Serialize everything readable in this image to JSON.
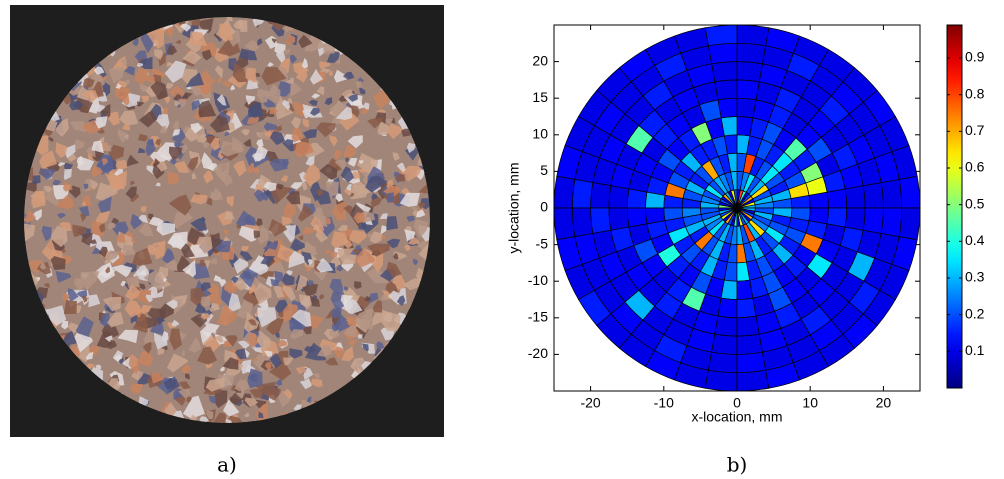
{
  "panels": [
    {
      "caption": "a)"
    }
  ],
  "chart_data": {
    "type": "polar-heatmap",
    "caption": "b)",
    "xlabel": "x-location, mm",
    "ylabel": "y-location, mm",
    "xlim": [
      -25,
      25
    ],
    "ylim": [
      -25,
      25
    ],
    "xticks": [
      -20,
      -10,
      0,
      10,
      20
    ],
    "yticks": [
      -20,
      -15,
      -10,
      -5,
      0,
      5,
      10,
      15,
      20
    ],
    "colormap": "jet",
    "clim": [
      0,
      0.99
    ],
    "cticks": [
      0.1,
      0.2,
      0.3,
      0.4,
      0.5,
      0.6,
      0.7,
      0.8,
      0.9
    ],
    "r_edges": [
      0,
      2.5,
      5,
      7.5,
      10,
      12.5,
      15,
      17.5,
      20,
      22.5,
      25
    ],
    "theta_edges": [
      0,
      10,
      20,
      30,
      40,
      50,
      60,
      70,
      80,
      90,
      100,
      110,
      120,
      130,
      140,
      150,
      160,
      170,
      180,
      190,
      200,
      210,
      220,
      230,
      240,
      250,
      260,
      270,
      280,
      290,
      300,
      310,
      320,
      330,
      340,
      350,
      360
    ],
    "values": [
      [
        0.3,
        0.6,
        0.1,
        0.7,
        0.2,
        0.1,
        0.4,
        0.8,
        0.1,
        0.2,
        0.6,
        0.1,
        0.3,
        0.7,
        0.1,
        0.2,
        0.1,
        0.5,
        0.1,
        0.3,
        0.2,
        0.6,
        0.1,
        0.7,
        0.2,
        0.1,
        0.4,
        0.1,
        0.6,
        0.2,
        0.3,
        0.1,
        0.7,
        0.2,
        0.1,
        0.3
      ],
      [
        0.25,
        0.3,
        0.2,
        0.65,
        0.3,
        0.2,
        0.35,
        0.25,
        0.2,
        0.3,
        0.2,
        0.25,
        0.3,
        0.2,
        0.35,
        0.2,
        0.25,
        0.3,
        0.2,
        0.2,
        0.3,
        0.25,
        0.35,
        0.2,
        0.3,
        0.2,
        0.25,
        0.3,
        0.2,
        0.8,
        0.3,
        0.65,
        0.25,
        0.2,
        0.3,
        0.2
      ],
      [
        0.2,
        0.3,
        0.15,
        0.2,
        0.35,
        0.2,
        0.15,
        0.8,
        0.2,
        0.3,
        0.15,
        0.2,
        0.7,
        0.2,
        0.15,
        0.3,
        0.2,
        0.15,
        0.25,
        0.2,
        0.3,
        0.15,
        0.75,
        0.2,
        0.3,
        0.15,
        0.2,
        0.75,
        0.2,
        0.3,
        0.15,
        0.2,
        0.35,
        0.2,
        0.15,
        0.3
      ],
      [
        0.15,
        0.65,
        0.2,
        0.15,
        0.35,
        0.15,
        0.2,
        0.15,
        0.3,
        0.15,
        0.2,
        0.15,
        0.15,
        0.3,
        0.15,
        0.2,
        0.75,
        0.15,
        0.2,
        0.15,
        0.35,
        0.15,
        0.2,
        0.15,
        0.3,
        0.15,
        0.2,
        0.35,
        0.15,
        0.2,
        0.15,
        0.3,
        0.15,
        0.2,
        0.15,
        0.2
      ],
      [
        0.12,
        0.6,
        0.5,
        0.15,
        0.45,
        0.12,
        0.2,
        0.15,
        0.12,
        0.3,
        0.12,
        0.5,
        0.15,
        0.12,
        0.2,
        0.12,
        0.15,
        0.3,
        0.12,
        0.15,
        0.12,
        0.4,
        0.15,
        0.12,
        0.2,
        0.12,
        0.3,
        0.12,
        0.15,
        0.2,
        0.12,
        0.15,
        0.12,
        0.75,
        0.15,
        0.12
      ],
      [
        0.12,
        0.15,
        0.1,
        0.2,
        0.12,
        0.1,
        0.15,
        0.12,
        0.1,
        0.12,
        0.2,
        0.1,
        0.12,
        0.15,
        0.1,
        0.12,
        0.1,
        0.15,
        0.12,
        0.1,
        0.2,
        0.12,
        0.1,
        0.15,
        0.45,
        0.1,
        0.12,
        0.15,
        0.1,
        0.2,
        0.12,
        0.1,
        0.35,
        0.12,
        0.1,
        0.15
      ],
      [
        0.1,
        0.12,
        0.15,
        0.1,
        0.12,
        0.1,
        0.15,
        0.1,
        0.12,
        0.1,
        0.1,
        0.12,
        0.1,
        0.15,
        0.45,
        0.1,
        0.12,
        0.1,
        0.1,
        0.15,
        0.1,
        0.12,
        0.1,
        0.15,
        0.1,
        0.12,
        0.1,
        0.1,
        0.12,
        0.15,
        0.1,
        0.12,
        0.1,
        0.1,
        0.15,
        0.1
      ],
      [
        0.1,
        0.1,
        0.12,
        0.1,
        0.15,
        0.1,
        0.1,
        0.12,
        0.1,
        0.1,
        0.12,
        0.1,
        0.15,
        0.1,
        0.1,
        0.12,
        0.1,
        0.1,
        0.15,
        0.1,
        0.12,
        0.1,
        0.3,
        0.1,
        0.1,
        0.12,
        0.1,
        0.1,
        0.12,
        0.1,
        0.15,
        0.1,
        0.1,
        0.3,
        0.1,
        0.12
      ],
      [
        0.1,
        0.12,
        0.1,
        0.1,
        0.12,
        0.1,
        0.15,
        0.1,
        0.1,
        0.12,
        0.1,
        0.15,
        0.1,
        0.1,
        0.12,
        0.1,
        0.1,
        0.15,
        0.1,
        0.12,
        0.1,
        0.1,
        0.12,
        0.1,
        0.15,
        0.1,
        0.1,
        0.12,
        0.1,
        0.1,
        0.12,
        0.1,
        0.15,
        0.1,
        0.1,
        0.12
      ],
      [
        0.12,
        0.1,
        0.1,
        0.12,
        0.1,
        0.1,
        0.1,
        0.12,
        0.1,
        0.15,
        0.1,
        0.1,
        0.12,
        0.1,
        0.1,
        0.1,
        0.12,
        0.1,
        0.1,
        0.12,
        0.1,
        0.15,
        0.1,
        0.1,
        0.12,
        0.1,
        0.1,
        0.1,
        0.12,
        0.1,
        0.1,
        0.12,
        0.1,
        0.1,
        0.12,
        0.1
      ]
    ]
  }
}
